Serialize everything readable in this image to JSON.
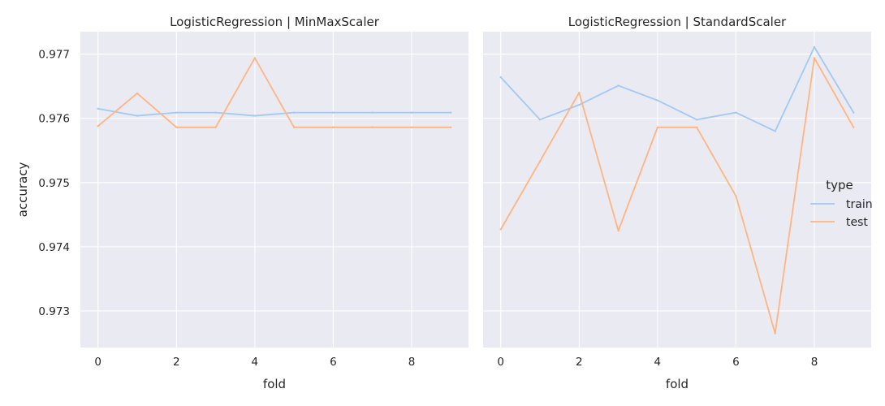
{
  "chart_data": [
    {
      "type": "line",
      "title": "LogisticRegression | MinMaxScaler",
      "xlabel": "fold",
      "ylabel": "accuracy",
      "xlim": [
        -0.45,
        9.45
      ],
      "ylim": [
        0.97243,
        0.97735
      ],
      "xticks": [
        0,
        2,
        4,
        6,
        8
      ],
      "yticks": [
        0.973,
        0.974,
        0.975,
        0.976,
        0.977
      ],
      "grid": true,
      "x": [
        0,
        1,
        2,
        3,
        4,
        5,
        6,
        7,
        8,
        9
      ],
      "series": [
        {
          "name": "train",
          "color": "#a1c9f4",
          "values": [
            0.97615,
            0.97604,
            0.97609,
            0.97609,
            0.97604,
            0.97609,
            0.97609,
            0.97609,
            0.97609,
            0.97609
          ]
        },
        {
          "name": "test",
          "color": "#ffb482",
          "values": [
            0.97588,
            0.97639,
            0.97586,
            0.97586,
            0.97694,
            0.97586,
            0.97586,
            0.97586,
            0.97586,
            0.97586
          ]
        }
      ]
    },
    {
      "type": "line",
      "title": "LogisticRegression | StandardScaler",
      "xlabel": "fold",
      "ylabel": "",
      "xlim": [
        -0.45,
        9.45
      ],
      "ylim": [
        0.97243,
        0.97735
      ],
      "xticks": [
        0,
        2,
        4,
        6,
        8
      ],
      "yticks": [
        0.973,
        0.974,
        0.975,
        0.976,
        0.977
      ],
      "grid": true,
      "x": [
        0,
        1,
        2,
        3,
        4,
        5,
        6,
        7,
        8,
        9
      ],
      "series": [
        {
          "name": "train",
          "color": "#a1c9f4",
          "values": [
            0.97664,
            0.97598,
            0.97621,
            0.97651,
            0.97628,
            0.97598,
            0.97609,
            0.9758,
            0.97711,
            0.97609
          ]
        },
        {
          "name": "test",
          "color": "#ffb482",
          "values": [
            0.97427,
            0.97533,
            0.9764,
            0.97425,
            0.97586,
            0.97586,
            0.97479,
            0.97265,
            0.97694,
            0.97586
          ]
        }
      ]
    }
  ],
  "legend": {
    "title": "type",
    "position": "center-right",
    "entries": [
      {
        "label": "train",
        "color": "#a1c9f4"
      },
      {
        "label": "test",
        "color": "#ffb482"
      }
    ]
  },
  "style": {
    "panel_background": "#eaeaf2",
    "grid_color": "#ffffff",
    "text_color": "#262626"
  }
}
